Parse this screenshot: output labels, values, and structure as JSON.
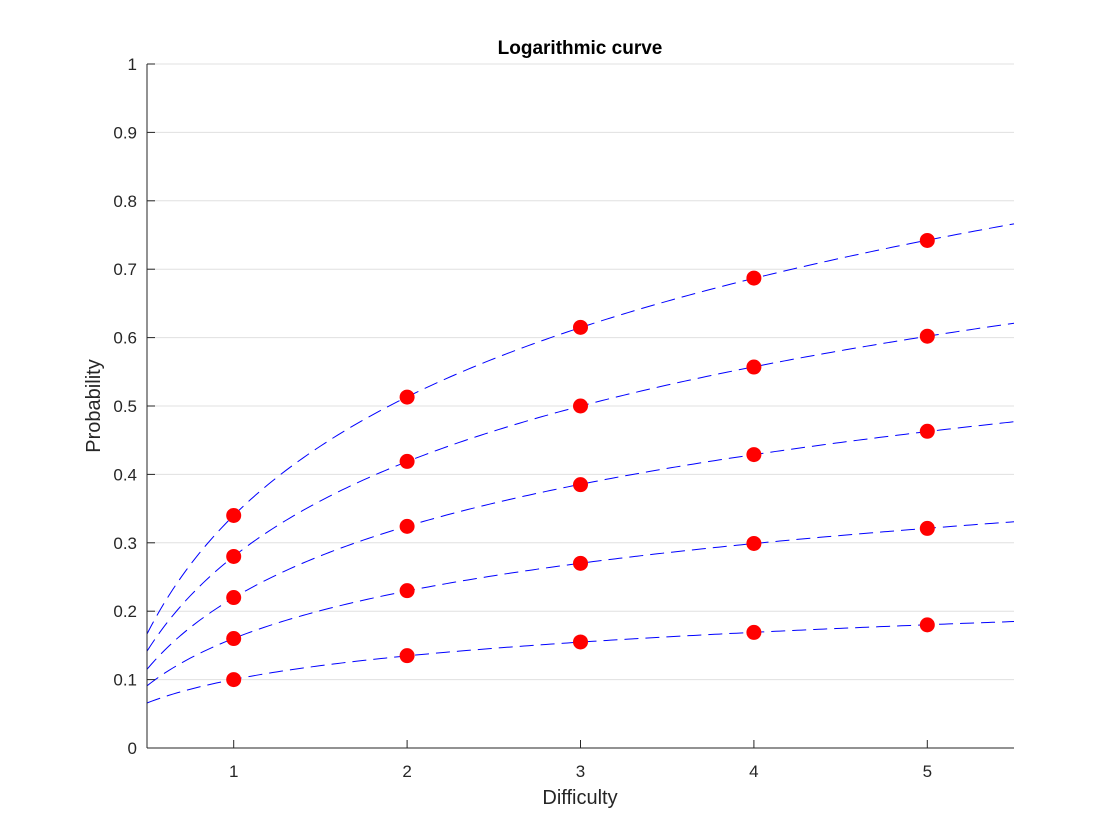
{
  "chart_data": {
    "type": "line",
    "title": "Logarithmic curve",
    "xlabel": "Difficulty",
    "ylabel": "Probability",
    "xlim": [
      0.5,
      5.5
    ],
    "ylim": [
      0,
      1
    ],
    "xticks": [
      1,
      2,
      3,
      4,
      5
    ],
    "xtick_labels": [
      "1",
      "2",
      "3",
      "4",
      "5"
    ],
    "yticks": [
      0,
      0.1,
      0.2,
      0.3,
      0.4,
      0.5,
      0.6,
      0.7,
      0.8,
      0.9,
      1
    ],
    "ytick_labels": [
      "0",
      "0.1",
      "0.2",
      "0.3",
      "0.4",
      "0.5",
      "0.6",
      "0.7",
      "0.8",
      "0.9",
      "1"
    ],
    "grid": "horizontal",
    "legend": "none",
    "x": [
      1,
      2,
      3,
      4,
      5
    ],
    "series": [
      {
        "values": [
          0.34,
          0.513,
          0.615,
          0.687,
          0.742
        ]
      },
      {
        "values": [
          0.28,
          0.419,
          0.5,
          0.557,
          0.602
        ]
      },
      {
        "values": [
          0.22,
          0.324,
          0.385,
          0.429,
          0.463
        ]
      },
      {
        "values": [
          0.16,
          0.23,
          0.27,
          0.299,
          0.321
        ]
      },
      {
        "values": [
          0.1,
          0.135,
          0.155,
          0.169,
          0.18
        ]
      }
    ],
    "colors": {
      "curve": "#0000ff",
      "marker": "#ff0000",
      "grid": "#e0e0e0",
      "axis": "#262626"
    }
  }
}
